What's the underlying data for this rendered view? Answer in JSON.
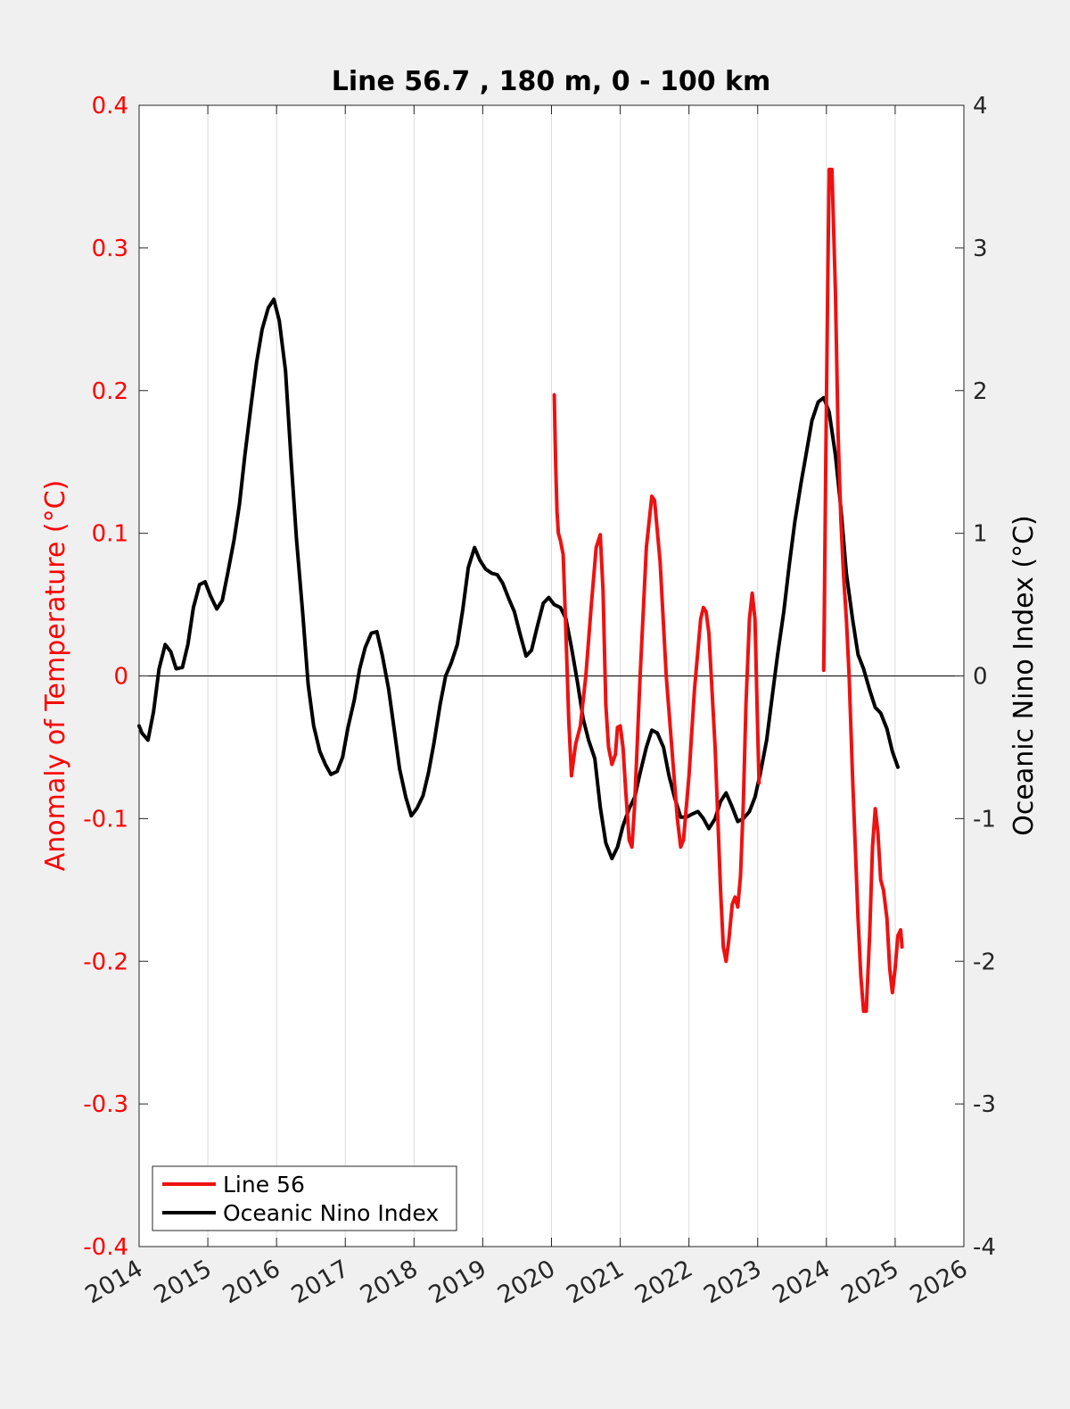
{
  "chart_data": {
    "type": "line",
    "title": "Line 56.7 , 180 m, 0 - 100 km",
    "xlabel": "",
    "ylabel_left": "Anomaly of Temperature (°C)",
    "ylabel_right": "Oceanic Nino Index (°C)",
    "xlim": [
      2014,
      2026
    ],
    "ylim_left": [
      -0.4,
      0.4
    ],
    "ylim_right": [
      -4,
      4
    ],
    "x_ticks": [
      "2014",
      "2015",
      "2016",
      "2017",
      "2018",
      "2019",
      "2020",
      "2021",
      "2022",
      "2023",
      "2024",
      "2025",
      "2026"
    ],
    "y_ticks_left": [
      "-0.4",
      "-0.3",
      "-0.2",
      "-0.1",
      "0",
      "0.1",
      "0.2",
      "0.3",
      "0.4"
    ],
    "y_ticks_right": [
      "-4",
      "-3",
      "-2",
      "-1",
      "0",
      "1",
      "2",
      "3",
      "4"
    ],
    "grid": "vertical",
    "legend_position": "bottom-left",
    "colors": {
      "left_axis": "#ff0000",
      "line56": "#ee1111",
      "oni": "#000000",
      "plot_bg": "#ffffff",
      "page_bg": "#f0f0f0"
    },
    "series": [
      {
        "name": "Line 56",
        "axis": "left",
        "points": [
          [
            2020.04,
            0.197
          ],
          [
            2020.06,
            0.15
          ],
          [
            2020.08,
            0.115
          ],
          [
            2020.1,
            0.1
          ],
          [
            2020.13,
            0.095
          ],
          [
            2020.17,
            0.085
          ],
          [
            2020.21,
            0.03
          ],
          [
            2020.25,
            -0.03
          ],
          [
            2020.29,
            -0.07
          ],
          [
            2020.35,
            -0.048
          ],
          [
            2020.42,
            -0.035
          ],
          [
            2020.5,
            0.0
          ],
          [
            2020.58,
            0.05
          ],
          [
            2020.65,
            0.09
          ],
          [
            2020.71,
            0.099
          ],
          [
            2020.75,
            0.06
          ],
          [
            2020.79,
            -0.02
          ],
          [
            2020.83,
            -0.05
          ],
          [
            2020.88,
            -0.062
          ],
          [
            2020.93,
            -0.055
          ],
          [
            2020.96,
            -0.036
          ],
          [
            2021.0,
            -0.035
          ],
          [
            2021.04,
            -0.05
          ],
          [
            2021.08,
            -0.08
          ],
          [
            2021.13,
            -0.115
          ],
          [
            2021.17,
            -0.12
          ],
          [
            2021.21,
            -0.09
          ],
          [
            2021.29,
            0.0
          ],
          [
            2021.38,
            0.09
          ],
          [
            2021.46,
            0.126
          ],
          [
            2021.5,
            0.123
          ],
          [
            2021.58,
            0.08
          ],
          [
            2021.67,
            0.0
          ],
          [
            2021.75,
            -0.05
          ],
          [
            2021.83,
            -0.1
          ],
          [
            2021.88,
            -0.12
          ],
          [
            2021.92,
            -0.115
          ],
          [
            2022.0,
            -0.07
          ],
          [
            2022.08,
            -0.01
          ],
          [
            2022.17,
            0.04
          ],
          [
            2022.21,
            0.048
          ],
          [
            2022.25,
            0.045
          ],
          [
            2022.29,
            0.03
          ],
          [
            2022.38,
            -0.05
          ],
          [
            2022.46,
            -0.15
          ],
          [
            2022.5,
            -0.19
          ],
          [
            2022.54,
            -0.2
          ],
          [
            2022.58,
            -0.185
          ],
          [
            2022.63,
            -0.16
          ],
          [
            2022.67,
            -0.155
          ],
          [
            2022.71,
            -0.162
          ],
          [
            2022.75,
            -0.14
          ],
          [
            2022.79,
            -0.09
          ],
          [
            2022.83,
            -0.02
          ],
          [
            2022.88,
            0.04
          ],
          [
            2022.92,
            0.058
          ],
          [
            2022.96,
            0.04
          ],
          [
            2023.0,
            -0.04
          ],
          [
            2023.02,
            -0.075
          ]
        ]
      },
      {
        "name": "Line 56",
        "axis": "left",
        "points": [
          [
            2023.96,
            0.004
          ],
          [
            2023.99,
            0.15
          ],
          [
            2024.02,
            0.28
          ],
          [
            2024.04,
            0.355
          ],
          [
            2024.08,
            0.355
          ],
          [
            2024.13,
            0.27
          ],
          [
            2024.17,
            0.17
          ],
          [
            2024.21,
            0.11
          ],
          [
            2024.25,
            0.07
          ],
          [
            2024.29,
            0.04
          ],
          [
            2024.33,
            0.0
          ],
          [
            2024.38,
            -0.07
          ],
          [
            2024.42,
            -0.12
          ],
          [
            2024.46,
            -0.17
          ],
          [
            2024.5,
            -0.21
          ],
          [
            2024.54,
            -0.235
          ],
          [
            2024.58,
            -0.235
          ],
          [
            2024.63,
            -0.18
          ],
          [
            2024.67,
            -0.12
          ],
          [
            2024.71,
            -0.093
          ],
          [
            2024.75,
            -0.11
          ],
          [
            2024.79,
            -0.143
          ],
          [
            2024.83,
            -0.15
          ],
          [
            2024.88,
            -0.17
          ],
          [
            2024.92,
            -0.205
          ],
          [
            2024.96,
            -0.222
          ],
          [
            2025.0,
            -0.205
          ],
          [
            2025.04,
            -0.182
          ],
          [
            2025.08,
            -0.178
          ],
          [
            2025.1,
            -0.19
          ]
        ]
      },
      {
        "name": "Oceanic Nino Index",
        "axis": "right",
        "points": [
          [
            2014.0,
            -0.35
          ],
          [
            2014.04,
            -0.4
          ],
          [
            2014.13,
            -0.45
          ],
          [
            2014.21,
            -0.25
          ],
          [
            2014.29,
            0.05
          ],
          [
            2014.38,
            0.22
          ],
          [
            2014.46,
            0.17
          ],
          [
            2014.54,
            0.05
          ],
          [
            2014.63,
            0.06
          ],
          [
            2014.71,
            0.22
          ],
          [
            2014.79,
            0.48
          ],
          [
            2014.88,
            0.64
          ],
          [
            2014.96,
            0.66
          ],
          [
            2015.04,
            0.56
          ],
          [
            2015.13,
            0.47
          ],
          [
            2015.21,
            0.53
          ],
          [
            2015.29,
            0.72
          ],
          [
            2015.38,
            0.95
          ],
          [
            2015.46,
            1.2
          ],
          [
            2015.54,
            1.55
          ],
          [
            2015.63,
            1.9
          ],
          [
            2015.71,
            2.2
          ],
          [
            2015.79,
            2.43
          ],
          [
            2015.88,
            2.58
          ],
          [
            2015.96,
            2.64
          ],
          [
            2016.04,
            2.49
          ],
          [
            2016.13,
            2.14
          ],
          [
            2016.21,
            1.52
          ],
          [
            2016.29,
            0.96
          ],
          [
            2016.38,
            0.44
          ],
          [
            2016.46,
            -0.06
          ],
          [
            2016.54,
            -0.35
          ],
          [
            2016.63,
            -0.53
          ],
          [
            2016.71,
            -0.62
          ],
          [
            2016.79,
            -0.69
          ],
          [
            2016.88,
            -0.67
          ],
          [
            2016.96,
            -0.57
          ],
          [
            2017.04,
            -0.36
          ],
          [
            2017.13,
            -0.17
          ],
          [
            2017.21,
            0.05
          ],
          [
            2017.29,
            0.2
          ],
          [
            2017.38,
            0.3
          ],
          [
            2017.46,
            0.31
          ],
          [
            2017.54,
            0.14
          ],
          [
            2017.63,
            -0.09
          ],
          [
            2017.71,
            -0.37
          ],
          [
            2017.79,
            -0.65
          ],
          [
            2017.88,
            -0.85
          ],
          [
            2017.96,
            -0.98
          ],
          [
            2018.04,
            -0.93
          ],
          [
            2018.13,
            -0.84
          ],
          [
            2018.21,
            -0.68
          ],
          [
            2018.29,
            -0.47
          ],
          [
            2018.38,
            -0.2
          ],
          [
            2018.46,
            0.0
          ],
          [
            2018.54,
            0.09
          ],
          [
            2018.63,
            0.22
          ],
          [
            2018.71,
            0.47
          ],
          [
            2018.79,
            0.76
          ],
          [
            2018.88,
            0.9
          ],
          [
            2018.96,
            0.81
          ],
          [
            2019.04,
            0.75
          ],
          [
            2019.13,
            0.72
          ],
          [
            2019.21,
            0.71
          ],
          [
            2019.29,
            0.65
          ],
          [
            2019.38,
            0.54
          ],
          [
            2019.46,
            0.45
          ],
          [
            2019.54,
            0.3
          ],
          [
            2019.63,
            0.14
          ],
          [
            2019.71,
            0.18
          ],
          [
            2019.79,
            0.34
          ],
          [
            2019.88,
            0.51
          ],
          [
            2019.96,
            0.55
          ],
          [
            2020.04,
            0.5
          ],
          [
            2020.13,
            0.48
          ],
          [
            2020.21,
            0.4
          ],
          [
            2020.29,
            0.2
          ],
          [
            2020.38,
            -0.05
          ],
          [
            2020.46,
            -0.3
          ],
          [
            2020.54,
            -0.45
          ],
          [
            2020.63,
            -0.58
          ],
          [
            2020.71,
            -0.92
          ],
          [
            2020.79,
            -1.17
          ],
          [
            2020.88,
            -1.28
          ],
          [
            2020.96,
            -1.2
          ],
          [
            2021.04,
            -1.05
          ],
          [
            2021.13,
            -0.93
          ],
          [
            2021.21,
            -0.85
          ],
          [
            2021.29,
            -0.68
          ],
          [
            2021.38,
            -0.5
          ],
          [
            2021.46,
            -0.38
          ],
          [
            2021.54,
            -0.4
          ],
          [
            2021.63,
            -0.5
          ],
          [
            2021.71,
            -0.7
          ],
          [
            2021.79,
            -0.85
          ],
          [
            2021.88,
            -0.99
          ],
          [
            2021.96,
            -0.99
          ],
          [
            2022.04,
            -0.97
          ],
          [
            2022.13,
            -0.95
          ],
          [
            2022.21,
            -1.0
          ],
          [
            2022.29,
            -1.07
          ],
          [
            2022.38,
            -1.0
          ],
          [
            2022.46,
            -0.88
          ],
          [
            2022.54,
            -0.82
          ],
          [
            2022.63,
            -0.92
          ],
          [
            2022.71,
            -1.02
          ],
          [
            2022.79,
            -1.0
          ],
          [
            2022.88,
            -0.95
          ],
          [
            2022.96,
            -0.85
          ],
          [
            2023.04,
            -0.68
          ],
          [
            2023.13,
            -0.45
          ],
          [
            2023.21,
            -0.15
          ],
          [
            2023.29,
            0.15
          ],
          [
            2023.38,
            0.45
          ],
          [
            2023.46,
            0.78
          ],
          [
            2023.54,
            1.08
          ],
          [
            2023.63,
            1.35
          ],
          [
            2023.71,
            1.57
          ],
          [
            2023.79,
            1.79
          ],
          [
            2023.88,
            1.92
          ],
          [
            2023.96,
            1.95
          ],
          [
            2024.04,
            1.85
          ],
          [
            2024.13,
            1.55
          ],
          [
            2024.21,
            1.18
          ],
          [
            2024.29,
            0.72
          ],
          [
            2024.38,
            0.4
          ],
          [
            2024.46,
            0.15
          ],
          [
            2024.54,
            0.05
          ],
          [
            2024.63,
            -0.1
          ],
          [
            2024.71,
            -0.22
          ],
          [
            2024.79,
            -0.26
          ],
          [
            2024.88,
            -0.37
          ],
          [
            2024.96,
            -0.53
          ],
          [
            2025.04,
            -0.64
          ]
        ]
      }
    ],
    "legend": [
      {
        "label": "Line 56",
        "color": "#ee1111"
      },
      {
        "label": "Oceanic Nino Index",
        "color": "#000000"
      }
    ]
  }
}
